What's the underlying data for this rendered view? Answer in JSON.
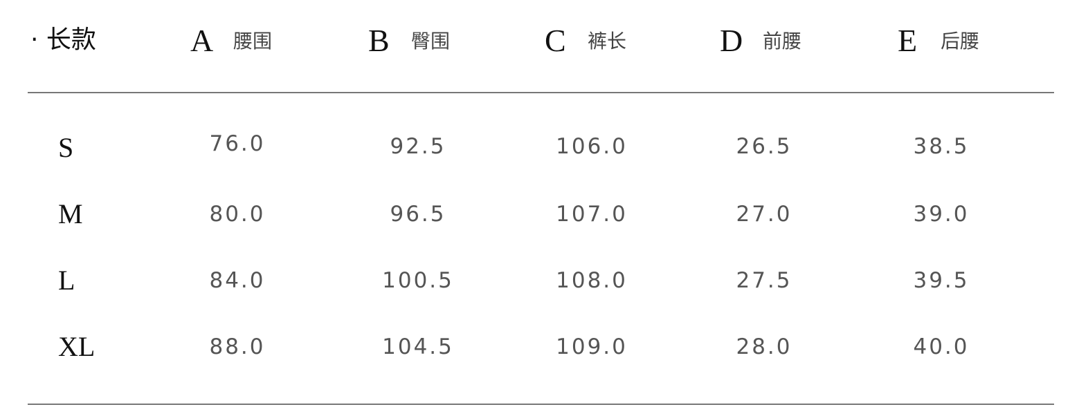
{
  "title": "· 长款",
  "columns": [
    {
      "letter": "A",
      "label": "腰围"
    },
    {
      "letter": "B",
      "label": "臀围"
    },
    {
      "letter": "C",
      "label": "裤长"
    },
    {
      "letter": "D",
      "label": "前腰"
    },
    {
      "letter": "E",
      "label": "后腰"
    }
  ],
  "rows": [
    {
      "size": "S",
      "values": [
        "76.0",
        "92.5",
        "106.0",
        "26.5",
        "38.5"
      ]
    },
    {
      "size": "M",
      "values": [
        "80.0",
        "96.5",
        "107.0",
        "27.0",
        "39.0"
      ]
    },
    {
      "size": "L",
      "values": [
        "84.0",
        "100.5",
        "108.0",
        "27.5",
        "39.5"
      ]
    },
    {
      "size": "XL",
      "values": [
        "88.0",
        "104.5",
        "109.0",
        "28.0",
        "40.0"
      ]
    }
  ]
}
